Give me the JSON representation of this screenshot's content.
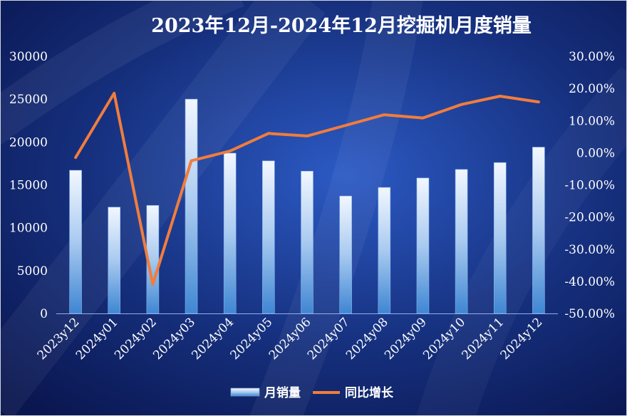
{
  "chart_data": {
    "type": "bar+line",
    "title": "2023年12月-2024年12月挖掘机月度销量",
    "categories": [
      "2023y12",
      "2024y01",
      "2024y02",
      "2024y03",
      "2024y04",
      "2024y05",
      "2024y06",
      "2024y07",
      "2024y08",
      "2024y09",
      "2024y10",
      "2024y11",
      "2024y12"
    ],
    "series": [
      {
        "name": "月销量",
        "type": "bar",
        "axis": "left",
        "values": [
          16700,
          12400,
          12600,
          25000,
          18700,
          17800,
          16600,
          13700,
          14700,
          15800,
          16800,
          17600,
          19400
        ]
      },
      {
        "name": "同比增长",
        "type": "line",
        "axis": "right",
        "values": [
          -1.5,
          18.5,
          -41.0,
          -2.5,
          0.5,
          6.0,
          5.2,
          8.5,
          11.8,
          10.8,
          15.0,
          17.6,
          15.8
        ]
      }
    ],
    "y_left": {
      "min": 0,
      "max": 30000,
      "step": 5000
    },
    "y_right": {
      "min": -50,
      "max": 30,
      "step": 10,
      "format": "percent_2dp"
    },
    "legend_position": "bottom",
    "grid": false,
    "colors": {
      "background_dark": "#0a1650",
      "background_light": "#2a55bf",
      "bar_top": "#f0f6ff",
      "bar_bottom": "#3f86d3",
      "line": "#f07d3d",
      "text": "#ffffff"
    }
  }
}
